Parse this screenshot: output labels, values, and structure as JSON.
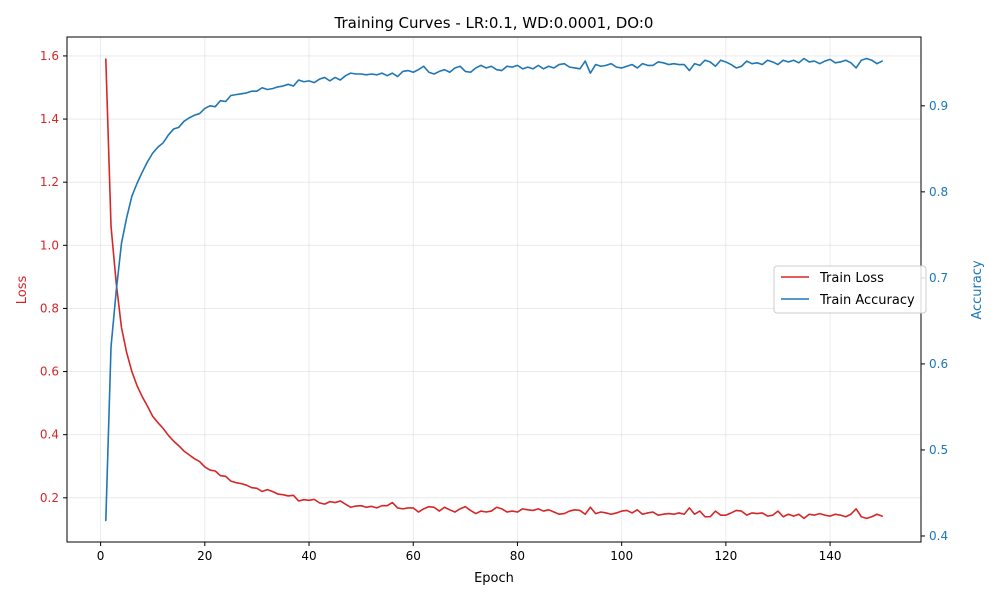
{
  "chart_data": {
    "type": "line",
    "title": "Training Curves - LR:0.1, WD:0.0001, DO:0",
    "xlabel": "Epoch",
    "ylabel_left": "Loss",
    "ylabel_right": "Accuracy",
    "xlim": [
      -6.45,
      157.45
    ],
    "ylim_left": [
      0.06,
      1.66
    ],
    "ylim_right": [
      0.393,
      0.98
    ],
    "x_ticks": [
      0,
      20,
      40,
      60,
      80,
      100,
      120,
      140
    ],
    "y_ticks_left": [
      0.2,
      0.4,
      0.6,
      0.8,
      1.0,
      1.2,
      1.4,
      1.6
    ],
    "y_ticks_right": [
      0.4,
      0.5,
      0.6,
      0.7,
      0.8,
      0.9
    ],
    "grid": true,
    "legend_position": "center-right",
    "colors": {
      "loss": "#d62728",
      "accuracy": "#1f77b4"
    },
    "x": [
      1,
      2,
      3,
      4,
      5,
      6,
      7,
      8,
      9,
      10,
      11,
      12,
      13,
      14,
      15,
      16,
      17,
      18,
      19,
      20,
      21,
      22,
      23,
      24,
      25,
      26,
      27,
      28,
      29,
      30,
      31,
      32,
      33,
      34,
      35,
      36,
      37,
      38,
      39,
      40,
      41,
      42,
      43,
      44,
      45,
      46,
      47,
      48,
      49,
      50,
      51,
      52,
      53,
      54,
      55,
      56,
      57,
      58,
      59,
      60,
      61,
      62,
      63,
      64,
      65,
      66,
      67,
      68,
      69,
      70,
      71,
      72,
      73,
      74,
      75,
      76,
      77,
      78,
      79,
      80,
      81,
      82,
      83,
      84,
      85,
      86,
      87,
      88,
      89,
      90,
      91,
      92,
      93,
      94,
      95,
      96,
      97,
      98,
      99,
      100,
      101,
      102,
      103,
      104,
      105,
      106,
      107,
      108,
      109,
      110,
      111,
      112,
      113,
      114,
      115,
      116,
      117,
      118,
      119,
      120,
      121,
      122,
      123,
      124,
      125,
      126,
      127,
      128,
      129,
      130,
      131,
      132,
      133,
      134,
      135,
      136,
      137,
      138,
      139,
      140,
      141,
      142,
      143,
      144,
      145,
      146,
      147,
      148,
      149,
      150
    ],
    "series": [
      {
        "name": "Train Loss",
        "axis": "left",
        "values": [
          1.59,
          1.06,
          0.88,
          0.74,
          0.66,
          0.6,
          0.555,
          0.52,
          0.49,
          0.458,
          0.438,
          0.42,
          0.398,
          0.38,
          0.365,
          0.348,
          0.336,
          0.324,
          0.315,
          0.298,
          0.288,
          0.285,
          0.27,
          0.268,
          0.253,
          0.248,
          0.245,
          0.24,
          0.232,
          0.23,
          0.22,
          0.226,
          0.22,
          0.212,
          0.21,
          0.206,
          0.208,
          0.19,
          0.194,
          0.192,
          0.195,
          0.184,
          0.18,
          0.188,
          0.185,
          0.19,
          0.18,
          0.17,
          0.174,
          0.175,
          0.17,
          0.173,
          0.168,
          0.175,
          0.175,
          0.185,
          0.168,
          0.165,
          0.168,
          0.168,
          0.155,
          0.165,
          0.172,
          0.17,
          0.158,
          0.17,
          0.162,
          0.155,
          0.165,
          0.172,
          0.16,
          0.15,
          0.158,
          0.155,
          0.158,
          0.17,
          0.165,
          0.155,
          0.158,
          0.155,
          0.165,
          0.162,
          0.16,
          0.165,
          0.158,
          0.162,
          0.155,
          0.148,
          0.15,
          0.158,
          0.162,
          0.16,
          0.148,
          0.17,
          0.15,
          0.155,
          0.152,
          0.148,
          0.152,
          0.158,
          0.16,
          0.152,
          0.162,
          0.148,
          0.152,
          0.155,
          0.145,
          0.148,
          0.15,
          0.148,
          0.152,
          0.148,
          0.168,
          0.148,
          0.158,
          0.14,
          0.14,
          0.158,
          0.145,
          0.145,
          0.152,
          0.16,
          0.158,
          0.145,
          0.152,
          0.15,
          0.152,
          0.142,
          0.145,
          0.158,
          0.14,
          0.148,
          0.142,
          0.148,
          0.135,
          0.148,
          0.145,
          0.15,
          0.145,
          0.142,
          0.148,
          0.145,
          0.14,
          0.148,
          0.165,
          0.14,
          0.135,
          0.14,
          0.148,
          0.142
        ]
      },
      {
        "name": "Train Accuracy",
        "axis": "right",
        "values": [
          0.418,
          0.62,
          0.685,
          0.74,
          0.77,
          0.795,
          0.81,
          0.823,
          0.835,
          0.845,
          0.852,
          0.857,
          0.866,
          0.873,
          0.875,
          0.882,
          0.886,
          0.889,
          0.891,
          0.897,
          0.9,
          0.899,
          0.906,
          0.905,
          0.912,
          0.913,
          0.914,
          0.915,
          0.917,
          0.917,
          0.921,
          0.919,
          0.92,
          0.922,
          0.923,
          0.925,
          0.923,
          0.93,
          0.928,
          0.929,
          0.927,
          0.931,
          0.933,
          0.929,
          0.933,
          0.93,
          0.935,
          0.938,
          0.937,
          0.937,
          0.936,
          0.937,
          0.936,
          0.938,
          0.935,
          0.938,
          0.934,
          0.94,
          0.941,
          0.939,
          0.942,
          0.946,
          0.939,
          0.937,
          0.94,
          0.942,
          0.939,
          0.944,
          0.946,
          0.94,
          0.939,
          0.944,
          0.947,
          0.944,
          0.946,
          0.942,
          0.941,
          0.946,
          0.945,
          0.947,
          0.943,
          0.945,
          0.943,
          0.947,
          0.943,
          0.946,
          0.944,
          0.948,
          0.949,
          0.945,
          0.944,
          0.943,
          0.952,
          0.938,
          0.948,
          0.946,
          0.947,
          0.949,
          0.945,
          0.944,
          0.946,
          0.948,
          0.944,
          0.949,
          0.947,
          0.947,
          0.951,
          0.95,
          0.948,
          0.949,
          0.948,
          0.948,
          0.941,
          0.949,
          0.947,
          0.953,
          0.951,
          0.946,
          0.953,
          0.951,
          0.948,
          0.944,
          0.946,
          0.952,
          0.949,
          0.95,
          0.948,
          0.953,
          0.951,
          0.948,
          0.953,
          0.951,
          0.953,
          0.95,
          0.955,
          0.951,
          0.952,
          0.949,
          0.952,
          0.954,
          0.95,
          0.951,
          0.953,
          0.95,
          0.944,
          0.953,
          0.955,
          0.953,
          0.949,
          0.952
        ]
      }
    ]
  }
}
